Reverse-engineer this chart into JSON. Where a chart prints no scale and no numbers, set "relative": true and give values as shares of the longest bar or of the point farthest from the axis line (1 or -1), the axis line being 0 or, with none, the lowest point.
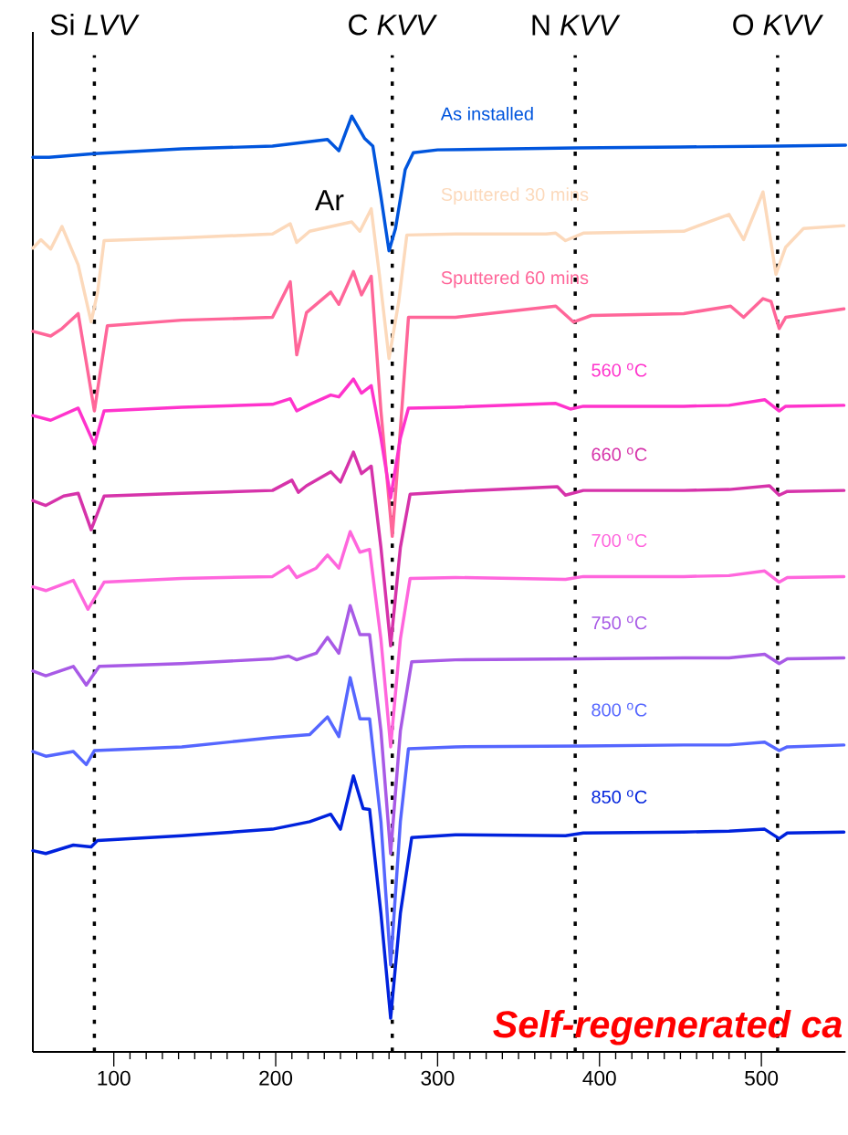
{
  "chart_data": {
    "type": "line",
    "relative": true,
    "xlim": [
      50,
      552
    ],
    "xticks": [
      100,
      200,
      300,
      400,
      500
    ],
    "series": [
      {
        "name": "As installed",
        "color": "#0055dd",
        "x": [
          50,
          60,
          88,
          142,
          198,
          232,
          239,
          247,
          255,
          260,
          265,
          270,
          274,
          280,
          285,
          300,
          385,
          450,
          510,
          552
        ],
        "values": [
          0.956,
          0.956,
          0.96,
          0.965,
          0.968,
          0.975,
          0.963,
          1.0,
          0.976,
          0.968,
          0.914,
          0.856,
          0.88,
          0.943,
          0.961,
          0.964,
          0.966,
          0.967,
          0.968,
          0.969
        ]
      },
      {
        "name": "Sputtered 30 mins",
        "color": "#fcd9bb",
        "x": [
          50,
          55,
          61,
          68,
          78,
          86,
          90,
          94,
          142,
          198,
          209,
          213,
          221,
          247,
          252,
          259,
          264,
          270,
          276,
          281,
          311,
          367,
          373,
          379,
          390,
          452,
          480,
          489,
          501,
          509,
          515,
          526,
          551
        ],
        "values": [
          0.859,
          0.868,
          0.858,
          0.882,
          0.841,
          0.78,
          0.812,
          0.867,
          0.87,
          0.874,
          0.885,
          0.865,
          0.877,
          0.887,
          0.877,
          0.901,
          0.831,
          0.741,
          0.802,
          0.873,
          0.874,
          0.874,
          0.875,
          0.867,
          0.875,
          0.877,
          0.895,
          0.868,
          0.919,
          0.831,
          0.86,
          0.88,
          0.883
        ]
      },
      {
        "name": "Sputtered 60 mins",
        "color": "#ff6699",
        "x": [
          50,
          61,
          68,
          78,
          88,
          96,
          142,
          198,
          209,
          213,
          219,
          234,
          239,
          248,
          253,
          259,
          265,
          272,
          277,
          282,
          311,
          373,
          384,
          395,
          452,
          481,
          489,
          501,
          506,
          511,
          515,
          551
        ],
        "values": [
          0.77,
          0.765,
          0.773,
          0.789,
          0.685,
          0.776,
          0.782,
          0.785,
          0.823,
          0.745,
          0.79,
          0.812,
          0.799,
          0.834,
          0.809,
          0.829,
          0.685,
          0.551,
          0.665,
          0.785,
          0.785,
          0.797,
          0.78,
          0.787,
          0.789,
          0.797,
          0.785,
          0.805,
          0.802,
          0.773,
          0.785,
          0.794
        ]
      },
      {
        "name": "560 $^{o}$C",
        "color": "#ff33cc",
        "x": [
          50,
          61,
          78,
          88,
          94,
          142,
          198,
          209,
          213,
          221,
          234,
          239,
          248,
          253,
          259,
          265,
          271,
          277,
          282,
          311,
          373,
          382,
          390,
          452,
          480,
          502,
          511,
          515,
          551
        ],
        "values": [
          0.68,
          0.675,
          0.688,
          0.649,
          0.685,
          0.689,
          0.692,
          0.698,
          0.685,
          0.692,
          0.702,
          0.7,
          0.719,
          0.704,
          0.712,
          0.656,
          0.592,
          0.656,
          0.688,
          0.689,
          0.693,
          0.687,
          0.69,
          0.69,
          0.691,
          0.697,
          0.685,
          0.69,
          0.691
        ]
      },
      {
        "name": "660 $^{o}$C",
        "color": "#d633aa",
        "x": [
          50,
          58,
          69,
          78,
          86,
          94,
          142,
          198,
          210,
          214,
          219,
          234,
          240,
          248,
          253,
          259,
          265,
          271,
          277,
          283,
          311,
          374,
          379,
          390,
          452,
          480,
          505,
          511,
          516,
          551
        ],
        "values": [
          0.589,
          0.584,
          0.594,
          0.597,
          0.558,
          0.594,
          0.597,
          0.6,
          0.611,
          0.598,
          0.605,
          0.62,
          0.609,
          0.641,
          0.618,
          0.626,
          0.539,
          0.434,
          0.539,
          0.596,
          0.599,
          0.604,
          0.595,
          0.6,
          0.6,
          0.601,
          0.605,
          0.595,
          0.599,
          0.6
        ]
      },
      {
        "name": "700 $^{o}$C",
        "color": "#ff66dd",
        "x": [
          50,
          58,
          75,
          84,
          94,
          142,
          198,
          208,
          213,
          225,
          232,
          239,
          246,
          252,
          258,
          265,
          271,
          277,
          283,
          311,
          379,
          390,
          452,
          480,
          502,
          511,
          516,
          551
        ],
        "values": [
          0.497,
          0.493,
          0.504,
          0.473,
          0.502,
          0.506,
          0.508,
          0.519,
          0.507,
          0.517,
          0.531,
          0.517,
          0.556,
          0.534,
          0.537,
          0.441,
          0.326,
          0.441,
          0.506,
          0.507,
          0.505,
          0.508,
          0.508,
          0.509,
          0.514,
          0.502,
          0.507,
          0.508
        ]
      },
      {
        "name": "750 $^{o}$C",
        "color": "#a85ae6",
        "x": [
          50,
          58,
          75,
          83,
          91,
          142,
          198,
          208,
          213,
          225,
          232,
          239,
          246,
          252,
          258,
          265,
          271,
          277,
          284,
          311,
          390,
          452,
          480,
          502,
          511,
          516,
          551
        ],
        "values": [
          0.407,
          0.402,
          0.412,
          0.392,
          0.412,
          0.415,
          0.42,
          0.423,
          0.419,
          0.426,
          0.443,
          0.426,
          0.477,
          0.446,
          0.446,
          0.343,
          0.212,
          0.343,
          0.417,
          0.419,
          0.42,
          0.421,
          0.421,
          0.425,
          0.415,
          0.42,
          0.421
        ]
      },
      {
        "name": "800 $^{o}$C",
        "color": "#5566ff",
        "x": [
          50,
          58,
          75,
          83,
          88,
          142,
          176,
          198,
          221,
          232,
          239,
          246,
          252,
          258,
          265,
          271,
          277,
          282,
          311,
          390,
          452,
          480,
          502,
          511,
          516,
          551
        ],
        "values": [
          0.321,
          0.316,
          0.321,
          0.307,
          0.322,
          0.326,
          0.332,
          0.336,
          0.339,
          0.358,
          0.337,
          0.4,
          0.356,
          0.356,
          0.246,
          0.093,
          0.246,
          0.324,
          0.326,
          0.327,
          0.328,
          0.328,
          0.331,
          0.322,
          0.326,
          0.328
        ]
      },
      {
        "name": "850 $^{o}$C",
        "color": "#0022dd",
        "x": [
          50,
          58,
          75,
          86,
          90,
          142,
          198,
          221,
          234,
          240,
          248,
          254,
          258,
          265,
          271,
          277,
          284,
          311,
          379,
          390,
          452,
          480,
          502,
          511,
          516,
          551
        ],
        "values": [
          0.215,
          0.212,
          0.221,
          0.219,
          0.226,
          0.231,
          0.238,
          0.246,
          0.254,
          0.238,
          0.295,
          0.26,
          0.259,
          0.148,
          0.036,
          0.148,
          0.229,
          0.232,
          0.231,
          0.234,
          0.235,
          0.236,
          0.238,
          0.228,
          0.234,
          0.235
        ]
      }
    ],
    "ref_lines": [
      {
        "axis": "x",
        "value": 88,
        "label": "Si *LVV*",
        "color": "#000000",
        "line_style": "dotted"
      },
      {
        "axis": "x",
        "value": 272,
        "label": "C *KVV*",
        "color": "#000000",
        "line_style": "dotted"
      },
      {
        "axis": "x",
        "value": 385,
        "label": "N *KVV*",
        "color": "#000000",
        "line_style": "dotted"
      },
      {
        "axis": "x",
        "value": 510,
        "label": "O *KVV*",
        "color": "#000000",
        "line_style": "dotted"
      }
    ],
    "annotations": [
      "Ar",
      "Self-regenerated ca"
    ]
  }
}
